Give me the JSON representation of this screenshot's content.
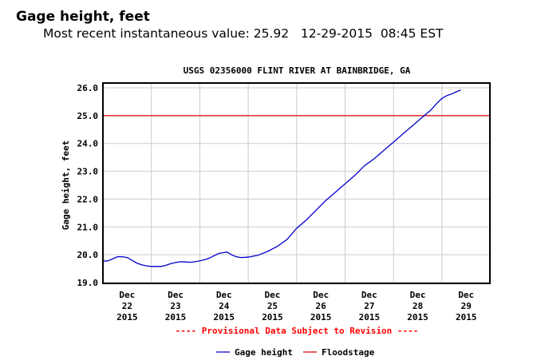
{
  "header": {
    "title": "Gage height, feet",
    "subtitle": "Most recent instantaneous value: 25.92   12-29-2015  08:45 EST"
  },
  "colors": {
    "series": "#0000cc",
    "floodstage": "#dd0000",
    "grid": "#cccccc",
    "notice": "#ff0000"
  },
  "chart_data": {
    "type": "line",
    "title": "USGS 02356000 FLINT RIVER AT BAINBRIDGE, GA",
    "xlabel": "",
    "ylabel": "Gage height, feet",
    "xlim_days": [
      0,
      8
    ],
    "ylim": [
      19.0,
      26.2
    ],
    "grid": true,
    "yticks": [
      "19.0",
      "20.0",
      "21.0",
      "22.0",
      "23.0",
      "24.0",
      "25.0",
      "26.0"
    ],
    "ytick_values": [
      19,
      20,
      21,
      22,
      23,
      24,
      25,
      26
    ],
    "xticks": [
      {
        "month": "Dec",
        "day": "22",
        "year": "2015"
      },
      {
        "month": "Dec",
        "day": "23",
        "year": "2015"
      },
      {
        "month": "Dec",
        "day": "24",
        "year": "2015"
      },
      {
        "month": "Dec",
        "day": "25",
        "year": "2015"
      },
      {
        "month": "Dec",
        "day": "26",
        "year": "2015"
      },
      {
        "month": "Dec",
        "day": "27",
        "year": "2015"
      },
      {
        "month": "Dec",
        "day": "28",
        "year": "2015"
      },
      {
        "month": "Dec",
        "day": "29",
        "year": "2015"
      }
    ],
    "notice": "---- Provisional Data Subject to Revision ----",
    "legend": [
      {
        "label": "Gage height",
        "color": "#0000cc"
      },
      {
        "label": "Floodstage",
        "color": "#dd0000"
      }
    ],
    "legend_position": "bottom-center",
    "floodstage": 25.0,
    "series": [
      {
        "name": "Gage height",
        "x_days_since_dec22": [
          0,
          0.1,
          0.2,
          0.3,
          0.4,
          0.5,
          0.6,
          0.7,
          0.8,
          0.9,
          1.0,
          1.1,
          1.2,
          1.3,
          1.4,
          1.5,
          1.6,
          1.7,
          1.8,
          1.9,
          2.0,
          2.1,
          2.2,
          2.3,
          2.4,
          2.5,
          2.56,
          2.65,
          2.75,
          2.85,
          2.95,
          3.05,
          3.2,
          3.4,
          3.6,
          3.8,
          4.0,
          4.2,
          4.4,
          4.6,
          4.8,
          5.0,
          5.2,
          5.4,
          5.6,
          5.8,
          6.0,
          6.2,
          6.4,
          6.6,
          6.77,
          6.9,
          7.0,
          7.1,
          7.2,
          7.3,
          7.39
        ],
        "y": [
          19.77,
          19.78,
          19.85,
          19.93,
          19.93,
          19.9,
          19.8,
          19.7,
          19.64,
          19.6,
          19.58,
          19.58,
          19.58,
          19.62,
          19.68,
          19.72,
          19.75,
          19.74,
          19.73,
          19.75,
          19.78,
          19.82,
          19.88,
          19.97,
          20.05,
          20.08,
          20.1,
          20.0,
          19.93,
          19.9,
          19.91,
          19.93,
          19.98,
          20.12,
          20.3,
          20.55,
          20.95,
          21.25,
          21.6,
          21.95,
          22.25,
          22.55,
          22.85,
          23.2,
          23.45,
          23.75,
          24.05,
          24.35,
          24.65,
          24.95,
          25.2,
          25.45,
          25.62,
          25.72,
          25.78,
          25.86,
          25.92
        ]
      }
    ]
  }
}
